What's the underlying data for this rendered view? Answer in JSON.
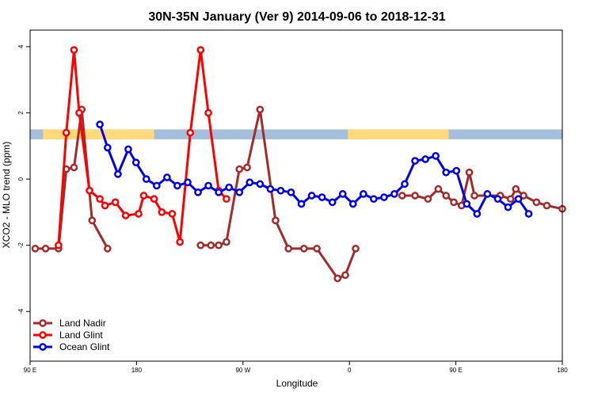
{
  "chart_data": {
    "type": "line",
    "title": "30N-35N January (Ver 9)   2014-09-06 to 2018-12-31",
    "xlabel": "Longitude",
    "ylabel": "XCO2 - MLO trend (ppm)",
    "xlim": [
      90,
      450
    ],
    "ylim": [
      -5.5,
      4.5
    ],
    "x_ticks": [
      {
        "value": 90,
        "label": "90 E"
      },
      {
        "value": 180,
        "label": "180"
      },
      {
        "value": 270,
        "label": "90 W"
      },
      {
        "value": 360,
        "label": "0"
      },
      {
        "value": 450,
        "label": "90 E"
      },
      {
        "value": 540,
        "label": "180"
      }
    ],
    "y_ticks": [
      {
        "value": 4,
        "label": "4"
      },
      {
        "value": 2,
        "label": "2"
      },
      {
        "value": 0,
        "label": "0"
      },
      {
        "value": -2,
        "label": "-2"
      },
      {
        "value": -4,
        "label": "-4"
      }
    ],
    "landmask": {
      "y_range": [
        1.2,
        1.5
      ],
      "land_color": "#FFD97A",
      "ocean_color": "#A4BEDC",
      "land_segments": [
        [
          95,
          138
        ],
        [
          213,
          252
        ],
        [
          352,
          396
        ],
        [
          456,
          498
        ]
      ]
    },
    "legend": {
      "position": "bottom-left"
    },
    "series": [
      {
        "name": "Land Nadir",
        "color": "#A52A2A",
        "x": [
          92,
          96,
          101,
          104,
          107,
          110,
          114,
          120,
          156,
          160,
          163,
          166,
          171,
          174,
          179,
          185,
          190,
          196,
          201,
          209,
          212,
          216,
          234,
          239,
          244,
          248,
          251,
          254,
          257,
          260,
          262,
          272,
          276,
          278,
          281,
          286,
          290,
          296
        ],
        "y": [
          -2.1,
          -2.1,
          -2.1,
          0.3,
          0.35,
          2.1,
          -1.25,
          -2.1,
          -2.0,
          -2.0,
          -2.0,
          -1.9,
          0.3,
          0.35,
          2.1,
          -1.25,
          -2.1,
          -2.1,
          -2.1,
          -3.0,
          -2.9,
          -2.1,
          -0.5,
          -0.5,
          -0.6,
          -0.3,
          -0.5,
          -0.7,
          -0.8,
          0.2,
          -0.5,
          -0.5,
          -0.6,
          -0.3,
          -0.5,
          -0.7,
          -0.8,
          -0.9
        ],
        "x_segment_break_index": null
      },
      {
        "name": "Land Glint",
        "color": "#FF0000",
        "x": [
          101,
          104,
          107,
          109,
          113,
          117,
          119,
          123,
          127,
          132,
          134,
          138,
          141,
          145,
          148,
          152,
          156,
          159,
          163,
          166
        ],
        "y": [
          -2.0,
          1.4,
          3.9,
          2.0,
          -0.35,
          -0.6,
          -0.8,
          -0.7,
          -1.1,
          -1.05,
          -0.5,
          -0.6,
          -1.0,
          -1.05,
          -1.9,
          1.4,
          3.9,
          2.0,
          -0.35,
          -0.6
        ],
        "x_segment_break_index": null
      },
      {
        "name": "Ocean Glint",
        "color": "#0000EE",
        "x": [
          117,
          120,
          124,
          128,
          131,
          135,
          139,
          143,
          147,
          151,
          155,
          159,
          163,
          167,
          171,
          175,
          179,
          183,
          187,
          191,
          195,
          199,
          203,
          207,
          211,
          215,
          219,
          223,
          227,
          231,
          235,
          239,
          243,
          247,
          251,
          255,
          259,
          263,
          267,
          271,
          275,
          279,
          283
        ],
        "y": [
          1.65,
          0.95,
          0.15,
          0.9,
          0.5,
          0.0,
          -0.2,
          0.05,
          -0.2,
          -0.1,
          -0.4,
          -0.2,
          -0.4,
          -0.25,
          -0.4,
          -0.1,
          -0.15,
          -0.3,
          -0.35,
          -0.4,
          -0.75,
          -0.5,
          -0.55,
          -0.7,
          -0.45,
          -0.75,
          -0.45,
          -0.6,
          -0.55,
          -0.45,
          -0.15,
          0.55,
          0.6,
          0.7,
          0.2,
          0.25,
          -0.75,
          -1.05,
          -0.45,
          -0.6,
          -0.85,
          -0.6,
          -1.05
        ],
        "x_segment_break_index": null
      }
    ]
  }
}
